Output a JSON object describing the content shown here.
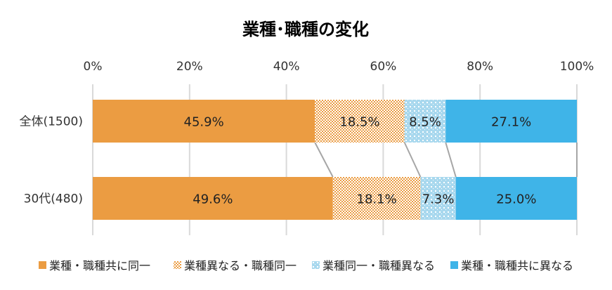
{
  "chart_data": {
    "type": "bar",
    "orientation": "horizontal",
    "stacked": "100%",
    "title": "業種･職種の変化",
    "categories": [
      "全体(1500)",
      "30代(480)"
    ],
    "series": [
      {
        "name": "業種・職種共に同一",
        "values": [
          45.9,
          49.6
        ],
        "labels": [
          "45.9%",
          "49.6%"
        ],
        "color": "#EB9C42",
        "pattern": "solid"
      },
      {
        "name": "業種異なる・職種同一",
        "values": [
          18.5,
          18.1
        ],
        "labels": [
          "18.5%",
          "18.1%"
        ],
        "color": "#EB9C42",
        "pattern": "checker"
      },
      {
        "name": "業種同一・職種異なる",
        "values": [
          8.5,
          7.3
        ],
        "labels": [
          "8.5%",
          "7.3%"
        ],
        "color": "#A8D8EE",
        "pattern": "dots"
      },
      {
        "name": "業種・職種共に異なる",
        "values": [
          27.1,
          25.0
        ],
        "labels": [
          "27.1%",
          "25.0%"
        ],
        "color": "#3FB4E8",
        "pattern": "solid"
      }
    ],
    "x_ticks": [
      "0%",
      "20%",
      "40%",
      "60%",
      "80%",
      "100%"
    ],
    "xlim": [
      0,
      100
    ],
    "axis_position": "top",
    "grid": true,
    "series_lines": true,
    "legend": "bottom"
  }
}
